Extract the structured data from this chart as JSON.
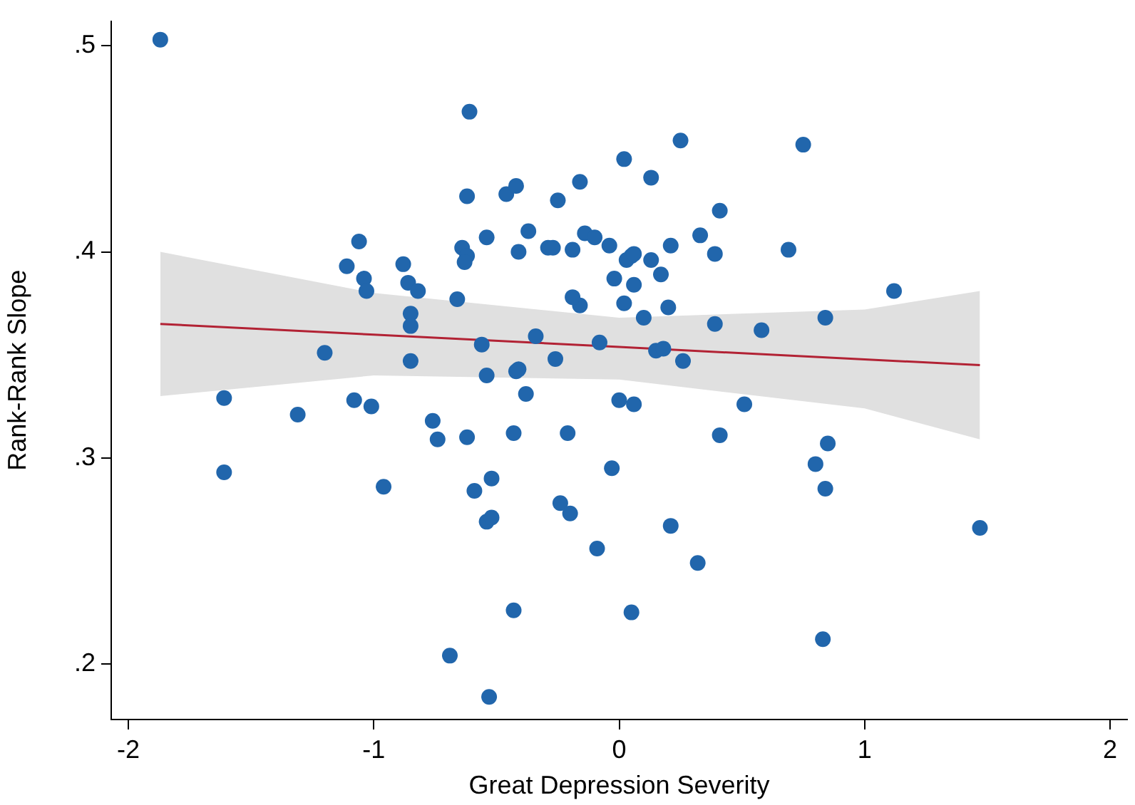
{
  "chart_data": {
    "type": "scatter",
    "xlabel": "Great Depression Severity",
    "ylabel": "Rank-Rank Slope",
    "xlim": [
      -2.07,
      2.07
    ],
    "xticks": [
      -2,
      -1,
      0,
      1,
      2
    ],
    "ylim": [
      0.173,
      0.512
    ],
    "yticks": [
      {
        "value": 0.2,
        "label": ".2"
      },
      {
        "value": 0.3,
        "label": ".3"
      },
      {
        "value": 0.4,
        "label": ".4"
      },
      {
        "value": 0.5,
        "label": ".5"
      }
    ],
    "grid": false,
    "legend": false,
    "marker": "circle",
    "series": [
      {
        "type": "line",
        "color": "#b22234",
        "marker": "none",
        "x": [
          -1.87,
          -1,
          0,
          1,
          1.47
        ],
        "values": [
          0.365,
          0.3598,
          0.3538,
          0.3478,
          0.345
        ],
        "lower": [
          0.33,
          0.34,
          0.338,
          0.324,
          0.309
        ],
        "upper": [
          0.4,
          0.38,
          0.368,
          0.372,
          0.381
        ]
      },
      {
        "color": "#2166ac",
        "x": [
          -1.87,
          -0.61,
          0.02,
          0.25,
          0.75,
          -0.62,
          -0.46,
          -0.42,
          -0.16,
          -0.25,
          0.13,
          0.41,
          -1.06,
          -0.54,
          -0.37,
          -0.14,
          -0.1,
          -0.64,
          -0.62,
          -0.63,
          -0.41,
          -0.29,
          -0.27,
          -0.19,
          -0.04,
          0.05,
          0.03,
          0.06,
          0.21,
          0.13,
          0.33,
          0.39,
          0.69,
          -1.11,
          -1.04,
          -0.88,
          -0.86,
          -0.82,
          -0.02,
          0.06,
          0.17,
          0.02,
          -0.16,
          -0.19,
          -1.03,
          -0.85,
          -0.85,
          -0.66,
          0.1,
          0.2,
          0.39,
          0.58,
          0.84,
          1.12,
          -0.34,
          -0.56,
          -0.08,
          -1.2,
          -0.26,
          -0.85,
          0.15,
          0.18,
          0.26,
          -1.61,
          -1.31,
          -1.08,
          -1.01,
          -0.76,
          -0.74,
          -0.62,
          -0.54,
          -0.38,
          -0.42,
          -0.41,
          -0.43,
          -0.21,
          0.0,
          0.06,
          0.51,
          0.41,
          -0.03,
          0.85,
          0.8,
          0.84,
          -1.61,
          -0.96,
          -0.59,
          -0.52,
          -0.24,
          -0.2,
          -0.54,
          -0.52,
          0.21,
          -0.09,
          1.47,
          0.32,
          -0.43,
          0.05,
          0.83,
          -0.69,
          -0.53
        ],
        "values": [
          0.503,
          0.468,
          0.445,
          0.454,
          0.452,
          0.427,
          0.428,
          0.432,
          0.434,
          0.425,
          0.436,
          0.42,
          0.405,
          0.407,
          0.41,
          0.409,
          0.407,
          0.402,
          0.398,
          0.395,
          0.4,
          0.402,
          0.402,
          0.401,
          0.403,
          0.398,
          0.396,
          0.399,
          0.403,
          0.396,
          0.408,
          0.399,
          0.401,
          0.393,
          0.387,
          0.394,
          0.385,
          0.381,
          0.387,
          0.384,
          0.389,
          0.375,
          0.374,
          0.378,
          0.381,
          0.37,
          0.364,
          0.377,
          0.368,
          0.373,
          0.365,
          0.362,
          0.368,
          0.381,
          0.359,
          0.355,
          0.356,
          0.351,
          0.348,
          0.347,
          0.352,
          0.353,
          0.347,
          0.329,
          0.321,
          0.328,
          0.325,
          0.318,
          0.309,
          0.31,
          0.34,
          0.331,
          0.342,
          0.343,
          0.312,
          0.312,
          0.328,
          0.326,
          0.326,
          0.311,
          0.295,
          0.307,
          0.297,
          0.285,
          0.293,
          0.286,
          0.284,
          0.29,
          0.278,
          0.273,
          0.269,
          0.271,
          0.267,
          0.256,
          0.266,
          0.249,
          0.226,
          0.225,
          0.212,
          0.204,
          0.184
        ]
      }
    ]
  }
}
